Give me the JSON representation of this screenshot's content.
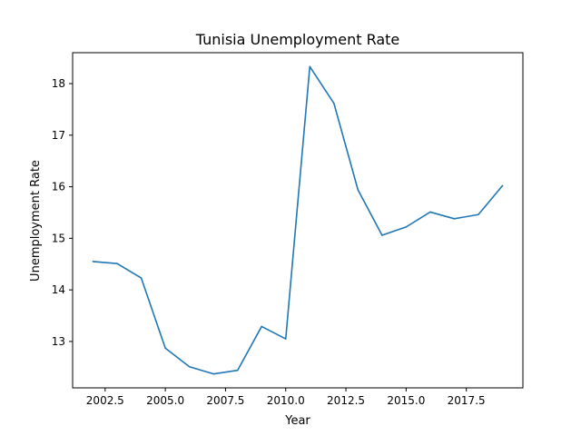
{
  "chart_data": {
    "type": "line",
    "title": "Tunisia Unemployment Rate",
    "xlabel": "Year",
    "ylabel": "Unemployment Rate",
    "xlim": [
      2001.15,
      2019.85
    ],
    "ylim": [
      12.1,
      18.6
    ],
    "grid": false,
    "legend": "none",
    "x_ticks": [
      2002.5,
      2005.0,
      2007.5,
      2010.0,
      2012.5,
      2015.0,
      2017.5
    ],
    "x_tick_labels": [
      "2002.5",
      "2005.0",
      "2007.5",
      "2010.0",
      "2012.5",
      "2015.0",
      "2017.5"
    ],
    "y_ticks": [
      13,
      14,
      15,
      16,
      17,
      18
    ],
    "y_tick_labels": [
      "13",
      "14",
      "15",
      "16",
      "17",
      "18"
    ],
    "series": [
      {
        "color": "#1f77b4",
        "x": [
          2002,
          2003,
          2004,
          2005,
          2006,
          2007,
          2008,
          2009,
          2010,
          2011,
          2012,
          2013,
          2014,
          2015,
          2016,
          2017,
          2018,
          2019
        ],
        "values": [
          14.55,
          14.51,
          14.23,
          12.87,
          12.51,
          12.37,
          12.44,
          13.29,
          13.05,
          18.33,
          17.62,
          15.94,
          15.06,
          15.22,
          15.51,
          15.38,
          15.46,
          16.02
        ]
      }
    ]
  }
}
